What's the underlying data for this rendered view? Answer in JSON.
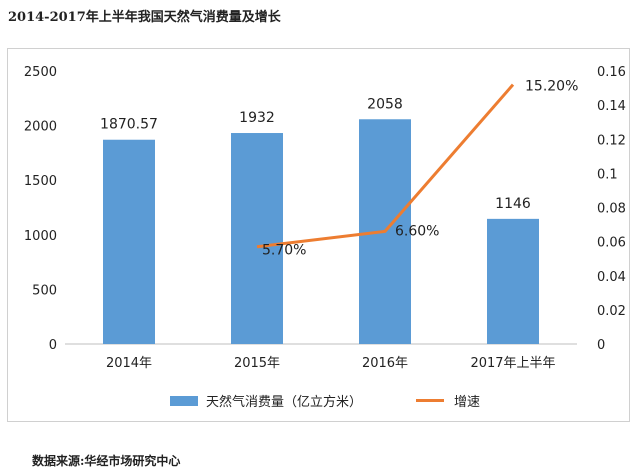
{
  "title": "2014-2017年上半年我国天然气消费量及增长",
  "source": "数据来源:华经市场研究中心",
  "chart_data": {
    "type": "bar",
    "categories": [
      "2014年",
      "2015年",
      "2016年",
      "2017年上半年"
    ],
    "series": [
      {
        "name": "天然气消费量（亿立方米）",
        "type": "bar",
        "axis": "left",
        "color": "#5b9bd5",
        "values": [
          1870.57,
          1932,
          2058,
          1146
        ],
        "labels": [
          "1870.57",
          "1932",
          "2058",
          "1146"
        ]
      },
      {
        "name": "增速",
        "type": "line",
        "axis": "right",
        "color": "#ed7d31",
        "values": [
          null,
          0.057,
          0.066,
          0.152
        ],
        "labels": [
          null,
          "5.70%",
          "6.60%",
          "15.20%"
        ]
      }
    ],
    "y_left": {
      "min": 0,
      "max": 2500,
      "ticks": [
        0,
        500,
        1000,
        1500,
        2000,
        2500
      ]
    },
    "y_right": {
      "min": 0,
      "max": 0.16,
      "ticks": [
        "0",
        "0.02",
        "0.04",
        "0.06",
        "0.08",
        "0.1",
        "0.12",
        "0.14",
        "0.16"
      ]
    },
    "grid": false,
    "legend_position": "bottom"
  }
}
